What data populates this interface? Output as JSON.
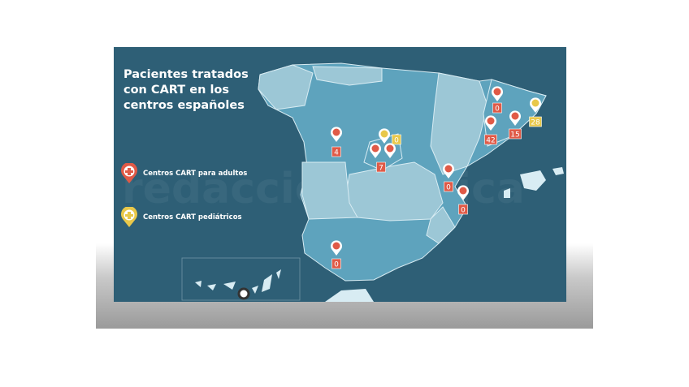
{
  "title": "Pacientes tratados con CART en los centros españoles",
  "legend": [
    {
      "label": "Centros CART para adultos",
      "icon": "adult-center-pin-icon",
      "color": "#e05a47"
    },
    {
      "label": "Centros CART pediátricos",
      "icon": "pediatric-center-pin-icon",
      "color": "#e8c84a"
    }
  ],
  "watermark": "redaccionmedica",
  "colors": {
    "background": "#2e5f76",
    "land_dark": "#5ea3bd",
    "land_light": "#9cc7d6",
    "adult": "#e05a47",
    "pediatric": "#e8c84a"
  },
  "centers": [
    {
      "region": "Cataluña",
      "type": "adult",
      "value": "0"
    },
    {
      "region": "Cataluña",
      "type": "pediatric",
      "value": "28"
    },
    {
      "region": "Cataluña",
      "type": "adult",
      "value": "15"
    },
    {
      "region": "Cataluña",
      "type": "adult",
      "value": "42"
    },
    {
      "region": "Madrid",
      "type": "pediatric",
      "value": "0"
    },
    {
      "region": "Madrid",
      "type": "adult",
      "value": "7"
    },
    {
      "region": "Castilla y León",
      "type": "adult",
      "value": "4"
    },
    {
      "region": "Comunidad Valenciana",
      "type": "adult",
      "value": "0"
    },
    {
      "region": "Comunidad Valenciana",
      "type": "adult",
      "value": "0"
    },
    {
      "region": "Andalucía",
      "type": "adult",
      "value": "0"
    }
  ]
}
